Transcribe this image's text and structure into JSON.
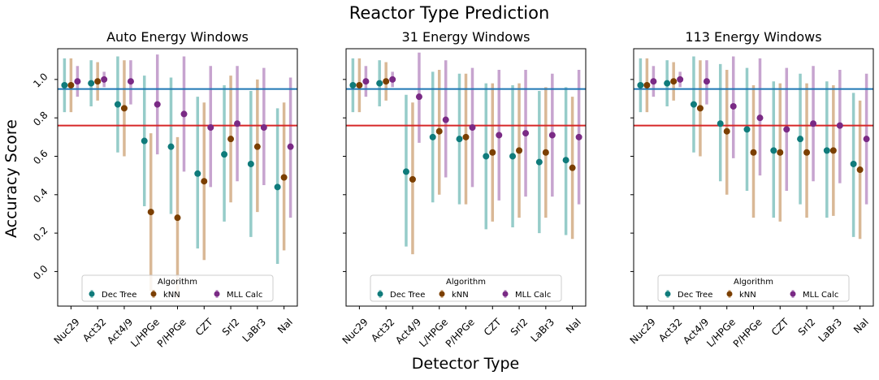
{
  "figure": {
    "suptitle": "Reactor Type Prediction",
    "xlabel": "Detector Type",
    "ylabel": "Accuracy Score"
  },
  "legend": {
    "title": "Algorithm",
    "placement": "lower-center"
  },
  "reference_lines": [
    {
      "y": 0.95,
      "color": "#1f77b4"
    },
    {
      "y": 0.76,
      "color": "#d62728"
    }
  ],
  "chart_data": [
    {
      "type": "scatter",
      "title": "Auto Energy Windows",
      "categories": [
        "Nuc29",
        "Act32",
        "Act4/9",
        "L/HPGe",
        "P/HPGe",
        "CZT",
        "SrI2",
        "LaBr3",
        "NaI"
      ],
      "ylim": [
        -0.18,
        1.16
      ],
      "yticks": [
        "0.0",
        "0.2",
        "0.4",
        "0.6",
        "0.8",
        "1.0"
      ],
      "grid": false,
      "series": [
        {
          "name": "Dec Tree",
          "color": "#0f7b7b",
          "bar_color": "#96ccc9",
          "values": [
            0.97,
            0.98,
            0.87,
            0.68,
            0.65,
            0.51,
            0.61,
            0.56,
            0.44
          ],
          "low": [
            0.83,
            0.86,
            0.62,
            0.34,
            0.3,
            0.12,
            0.26,
            0.18,
            0.04
          ],
          "high": [
            1.11,
            1.1,
            1.12,
            1.02,
            1.01,
            0.91,
            0.97,
            0.94,
            0.85
          ]
        },
        {
          "name": "kNN",
          "color": "#7b3f00",
          "bar_color": "#d9b896",
          "values": [
            0.97,
            0.99,
            0.85,
            0.31,
            0.28,
            0.47,
            0.69,
            0.65,
            0.49
          ],
          "low": [
            0.83,
            0.89,
            0.6,
            -0.1,
            -0.14,
            0.06,
            0.36,
            0.31,
            0.11
          ],
          "high": [
            1.11,
            1.09,
            1.1,
            0.72,
            0.7,
            0.88,
            1.02,
            1.0,
            0.88
          ]
        },
        {
          "name": "MLL Calc",
          "color": "#7a2a85",
          "bar_color": "#c7a4cf",
          "values": [
            0.99,
            1.0,
            0.99,
            0.87,
            0.82,
            0.75,
            0.77,
            0.75,
            0.65
          ],
          "low": [
            0.91,
            0.96,
            0.87,
            0.61,
            0.52,
            0.44,
            0.47,
            0.45,
            0.28
          ],
          "high": [
            1.07,
            1.04,
            1.1,
            1.13,
            1.12,
            1.07,
            1.07,
            1.06,
            1.01
          ]
        }
      ]
    },
    {
      "type": "scatter",
      "title": "31 Energy Windows",
      "categories": [
        "Nuc29",
        "Act32",
        "Act4/9",
        "L/HPGe",
        "P/HPGe",
        "CZT",
        "SrI2",
        "LaBr3",
        "NaI"
      ],
      "ylim": [
        -0.18,
        1.16
      ],
      "grid": false,
      "series": [
        {
          "name": "Dec Tree",
          "color": "#0f7b7b",
          "bar_color": "#96ccc9",
          "values": [
            0.97,
            0.98,
            0.52,
            0.7,
            0.69,
            0.6,
            0.6,
            0.57,
            0.58
          ],
          "low": [
            0.83,
            0.86,
            0.13,
            0.36,
            0.35,
            0.22,
            0.23,
            0.2,
            0.19
          ],
          "high": [
            1.11,
            1.1,
            0.92,
            1.04,
            1.03,
            0.98,
            0.97,
            0.94,
            0.96
          ]
        },
        {
          "name": "kNN",
          "color": "#7b3f00",
          "bar_color": "#d9b896",
          "values": [
            0.97,
            0.99,
            0.48,
            0.73,
            0.7,
            0.62,
            0.63,
            0.62,
            0.54
          ],
          "low": [
            0.83,
            0.89,
            0.09,
            0.4,
            0.35,
            0.26,
            0.28,
            0.28,
            0.17
          ],
          "high": [
            1.11,
            1.09,
            0.88,
            1.05,
            1.03,
            0.98,
            0.98,
            0.96,
            0.91
          ]
        },
        {
          "name": "MLL Calc",
          "color": "#7a2a85",
          "bar_color": "#c7a4cf",
          "values": [
            0.99,
            1.0,
            0.91,
            0.79,
            0.75,
            0.71,
            0.72,
            0.71,
            0.7
          ],
          "low": [
            0.91,
            0.96,
            0.67,
            0.49,
            0.44,
            0.37,
            0.39,
            0.39,
            0.35
          ],
          "high": [
            1.07,
            1.04,
            1.14,
            1.1,
            1.06,
            1.05,
            1.05,
            1.03,
            1.05
          ]
        }
      ]
    },
    {
      "type": "scatter",
      "title": "113 Energy Windows",
      "categories": [
        "Nuc29",
        "Act32",
        "Act4/9",
        "L/HPGe",
        "P/HPGe",
        "CZT",
        "SrI2",
        "LaBr3",
        "NaI"
      ],
      "ylim": [
        -0.18,
        1.16
      ],
      "grid": false,
      "series": [
        {
          "name": "Dec Tree",
          "color": "#0f7b7b",
          "bar_color": "#96ccc9",
          "values": [
            0.97,
            0.98,
            0.87,
            0.77,
            0.74,
            0.63,
            0.69,
            0.63,
            0.56
          ],
          "low": [
            0.83,
            0.86,
            0.62,
            0.47,
            0.42,
            0.28,
            0.35,
            0.28,
            0.18
          ],
          "high": [
            1.11,
            1.1,
            1.12,
            1.08,
            1.06,
            0.99,
            1.03,
            0.99,
            0.93
          ]
        },
        {
          "name": "kNN",
          "color": "#7b3f00",
          "bar_color": "#d9b896",
          "values": [
            0.97,
            0.99,
            0.85,
            0.73,
            0.62,
            0.62,
            0.62,
            0.63,
            0.53
          ],
          "low": [
            0.83,
            0.89,
            0.6,
            0.4,
            0.28,
            0.26,
            0.28,
            0.29,
            0.17
          ],
          "high": [
            1.11,
            1.09,
            1.1,
            1.05,
            0.97,
            0.98,
            0.98,
            0.97,
            0.89
          ]
        },
        {
          "name": "MLL Calc",
          "color": "#7a2a85",
          "bar_color": "#c7a4cf",
          "values": [
            0.99,
            1.0,
            0.99,
            0.86,
            0.8,
            0.74,
            0.77,
            0.76,
            0.69
          ],
          "low": [
            0.91,
            0.96,
            0.87,
            0.59,
            0.5,
            0.42,
            0.47,
            0.46,
            0.35
          ],
          "high": [
            1.07,
            1.04,
            1.1,
            1.12,
            1.11,
            1.06,
            1.07,
            1.05,
            1.03
          ]
        }
      ]
    }
  ]
}
